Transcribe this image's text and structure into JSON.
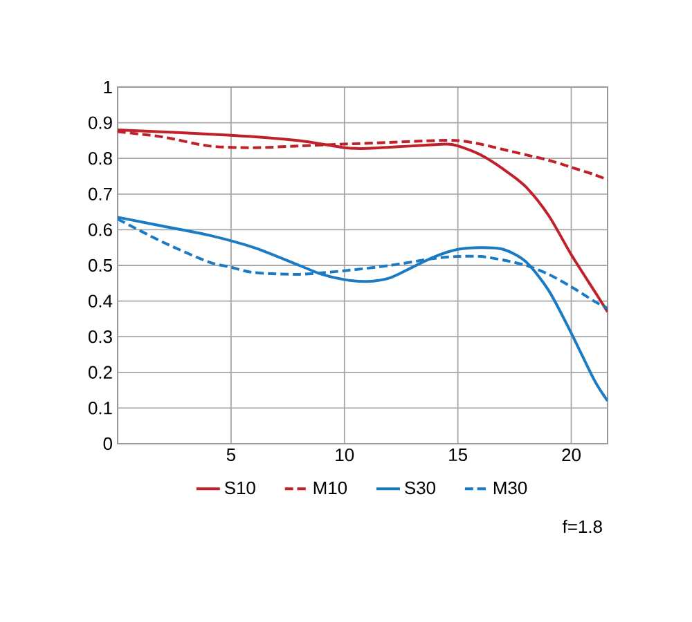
{
  "chart_data": {
    "type": "line",
    "xlim": [
      0,
      21.6
    ],
    "ylim": [
      0,
      1
    ],
    "xticks": [
      5,
      10,
      15,
      20
    ],
    "yticks": [
      0,
      0.1,
      0.2,
      0.3,
      0.4,
      0.5,
      0.6,
      0.7,
      0.8,
      0.9,
      1
    ],
    "grid": true,
    "legend": "bottom",
    "annotations": [
      "f=1.8"
    ],
    "series": [
      {
        "name": "S10",
        "color": "#c0202a",
        "line_style": "solid",
        "x": [
          0,
          5,
          8,
          10,
          11,
          13,
          14.5,
          15,
          16,
          17,
          18,
          19,
          20,
          21,
          21.6
        ],
        "values": [
          0.88,
          0.865,
          0.85,
          0.83,
          0.828,
          0.835,
          0.84,
          0.835,
          0.81,
          0.77,
          0.72,
          0.64,
          0.53,
          0.43,
          0.37
        ]
      },
      {
        "name": "M10",
        "color": "#c0202a",
        "line_style": "dashed",
        "x": [
          0,
          2,
          4,
          6,
          8,
          10,
          12,
          14,
          15,
          16,
          17,
          18,
          19,
          20,
          21,
          21.6
        ],
        "values": [
          0.875,
          0.86,
          0.835,
          0.83,
          0.835,
          0.84,
          0.845,
          0.85,
          0.85,
          0.84,
          0.825,
          0.81,
          0.795,
          0.775,
          0.755,
          0.74
        ]
      },
      {
        "name": "S30",
        "color": "#1a7ac4",
        "line_style": "solid",
        "x": [
          0,
          2,
          4,
          6,
          8,
          9,
          10,
          11,
          12,
          13,
          14,
          15,
          16,
          17,
          18,
          19,
          20,
          21,
          21.6
        ],
        "values": [
          0.635,
          0.61,
          0.585,
          0.55,
          0.5,
          0.475,
          0.46,
          0.455,
          0.465,
          0.495,
          0.525,
          0.545,
          0.55,
          0.545,
          0.51,
          0.43,
          0.31,
          0.18,
          0.12
        ]
      },
      {
        "name": "M30",
        "color": "#1a7ac4",
        "line_style": "dashed",
        "x": [
          0,
          2,
          4,
          5,
          6,
          8,
          10,
          12,
          14,
          15,
          16,
          17,
          18,
          19,
          20,
          21,
          21.6
        ],
        "values": [
          0.63,
          0.565,
          0.51,
          0.495,
          0.48,
          0.475,
          0.485,
          0.5,
          0.52,
          0.525,
          0.525,
          0.515,
          0.5,
          0.475,
          0.44,
          0.4,
          0.38
        ]
      }
    ]
  }
}
